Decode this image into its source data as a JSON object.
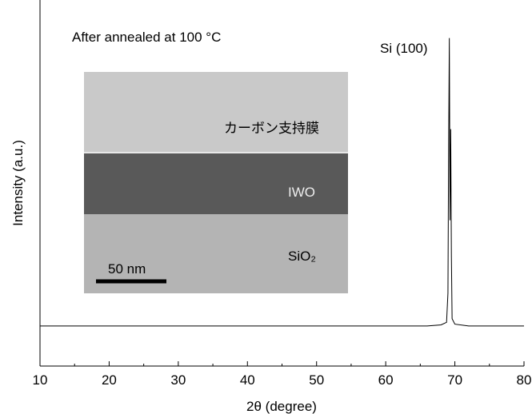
{
  "chart_data": {
    "type": "line",
    "x_label": "2θ (degree)",
    "y_label": "Intensity (a.u.)",
    "x": [
      10,
      60,
      66,
      68,
      68.8,
      69.0,
      69.1,
      69.2,
      69.3,
      69.4,
      69.5,
      69.6,
      70,
      72,
      80
    ],
    "series": [
      {
        "name": "After annealed at 100 °C",
        "color": "#000000",
        "values": [
          11,
          11,
          11,
          11.3,
          12,
          20,
          60,
          90,
          40,
          65,
          30,
          13,
          11.5,
          11,
          11
        ]
      }
    ],
    "xlim": [
      10,
      80
    ],
    "xticks": [
      10,
      20,
      30,
      40,
      50,
      60,
      70,
      80
    ],
    "xminor": [
      15,
      25,
      35,
      45,
      55,
      65,
      75
    ],
    "ylim": [
      0,
      100
    ],
    "annotations": {
      "peak": "Si (100)"
    },
    "inset": {
      "carbon": "カーボン支持膜",
      "iwo": "IWO",
      "sio2": "SiO₂",
      "scale": "50 nm"
    }
  }
}
